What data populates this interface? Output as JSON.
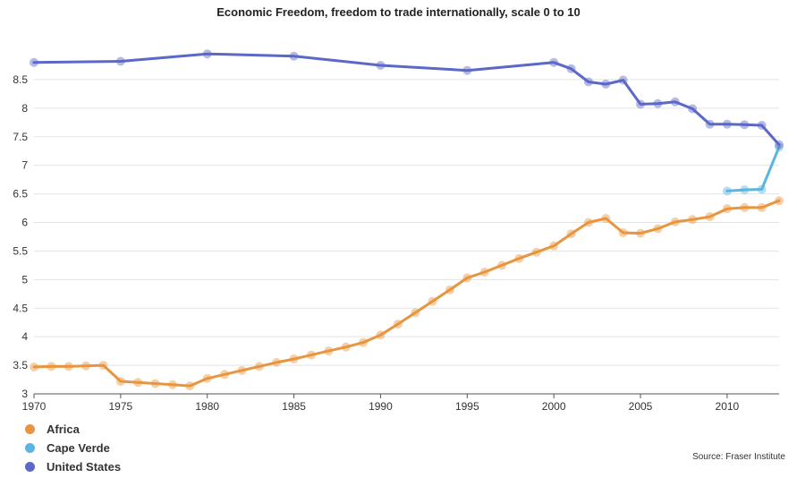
{
  "chart_data": {
    "type": "line",
    "title": "Economic Freedom, freedom to trade internationally, scale 0 to 10",
    "xlabel": "",
    "ylabel": "",
    "xlim": [
      1970,
      2013
    ],
    "ylim": [
      3,
      9
    ],
    "x_ticks": [
      1970,
      1975,
      1980,
      1985,
      1990,
      1995,
      2000,
      2005,
      2010
    ],
    "y_ticks": [
      3,
      3.5,
      4,
      4.5,
      5,
      5.5,
      6,
      6.5,
      7,
      7.5,
      8,
      8.5
    ],
    "series": [
      {
        "name": "Africa",
        "color": "#e8953f",
        "x": [
          1970,
          1971,
          1972,
          1973,
          1974,
          1975,
          1976,
          1977,
          1978,
          1979,
          1980,
          1981,
          1982,
          1983,
          1984,
          1985,
          1986,
          1987,
          1988,
          1989,
          1990,
          1991,
          1992,
          1993,
          1994,
          1995,
          1996,
          1997,
          1998,
          1999,
          2000,
          2001,
          2002,
          2003,
          2004,
          2005,
          2006,
          2007,
          2008,
          2009,
          2010,
          2011,
          2012,
          2013
        ],
        "values": [
          3.47,
          3.48,
          3.48,
          3.49,
          3.5,
          3.22,
          3.2,
          3.18,
          3.16,
          3.14,
          3.27,
          3.34,
          3.41,
          3.48,
          3.55,
          3.61,
          3.68,
          3.75,
          3.82,
          3.9,
          4.03,
          4.22,
          4.42,
          4.62,
          4.82,
          5.03,
          5.13,
          5.25,
          5.37,
          5.48,
          5.59,
          5.8,
          6.0,
          6.07,
          5.82,
          5.81,
          5.89,
          6.01,
          6.05,
          6.1,
          6.24,
          6.26,
          6.26,
          6.38
        ]
      },
      {
        "name": "Cape Verde",
        "color": "#5bb5e0",
        "x": [
          2010,
          2011,
          2012,
          2013
        ],
        "values": [
          6.55,
          6.57,
          6.58,
          7.32
        ]
      },
      {
        "name": "United States",
        "color": "#5b68c7",
        "x": [
          1970,
          1975,
          1980,
          1985,
          1990,
          1995,
          2000,
          2001,
          2002,
          2003,
          2004,
          2005,
          2006,
          2007,
          2008,
          2009,
          2010,
          2011,
          2012,
          2013
        ],
        "values": [
          8.8,
          8.82,
          8.95,
          8.91,
          8.75,
          8.66,
          8.8,
          8.69,
          8.46,
          8.42,
          8.49,
          8.07,
          8.08,
          8.11,
          7.99,
          7.72,
          7.72,
          7.71,
          7.7,
          7.36
        ]
      }
    ],
    "legend_position": "bottom-left",
    "source": "Source: Fraser Institute"
  }
}
